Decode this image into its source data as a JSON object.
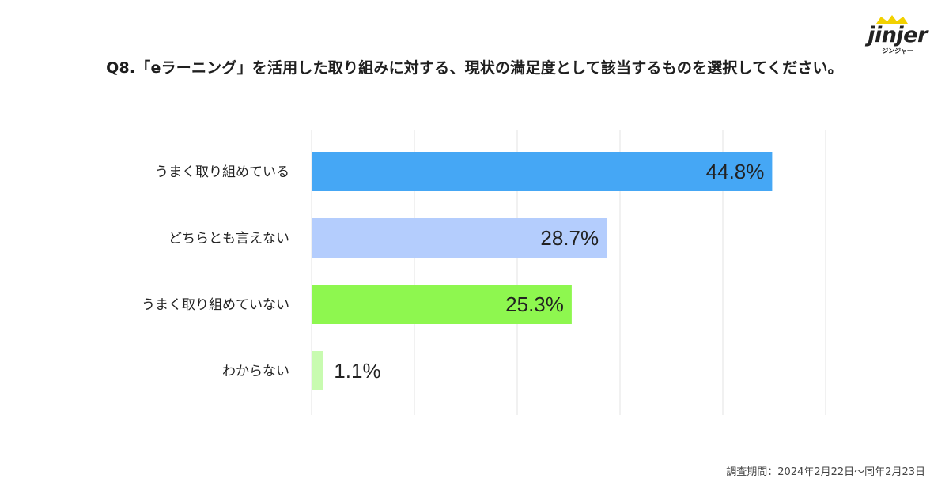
{
  "title": "Q8.「eラーニング」を活用した取り組みに対する、現状の満足度として該当するものを選択してください。",
  "logo": {
    "name": "jinjer",
    "sub": "ジンジャー",
    "accent": "#f2d100"
  },
  "footnote": "調査期間：2024年2月22日〜同年2月23日",
  "chart_data": {
    "type": "bar",
    "orientation": "horizontal",
    "categories": [
      "うまく取り組めている",
      "どちらとも言えない",
      "うまく取り組めていない",
      "わからない"
    ],
    "values": [
      44.8,
      28.7,
      25.3,
      1.1
    ],
    "value_labels": [
      "44.8%",
      "28.7%",
      "25.3%",
      "1.1%"
    ],
    "colors": [
      "#45a7f5",
      "#b4cdfd",
      "#8ef74f",
      "#c8fbb0"
    ],
    "xlim": [
      0,
      50
    ],
    "grid": true,
    "legend": "none"
  }
}
